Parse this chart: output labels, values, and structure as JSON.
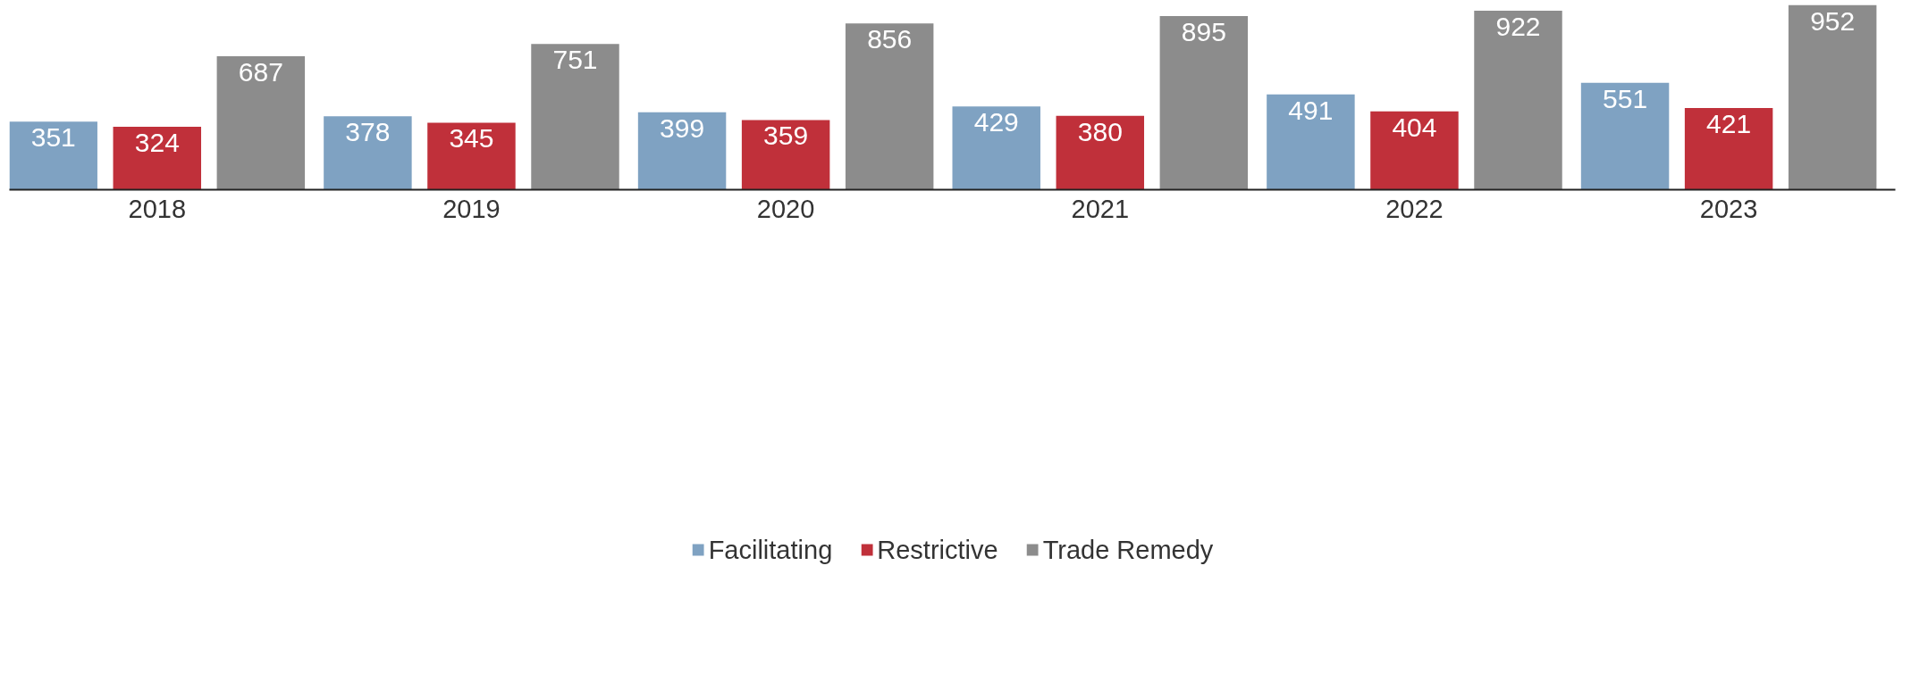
{
  "chart_data": {
    "type": "bar",
    "categories": [
      "2018",
      "2019",
      "2020",
      "2021",
      "2022",
      "2023"
    ],
    "series": [
      {
        "name": "Facilitating",
        "color": "#7fa2c2",
        "values": [
          351,
          378,
          399,
          429,
          491,
          551
        ]
      },
      {
        "name": "Restrictive",
        "color": "#c0303a",
        "values": [
          324,
          345,
          359,
          380,
          404,
          421
        ]
      },
      {
        "name": "Trade Remedy",
        "color": "#8c8c8c",
        "values": [
          687,
          751,
          856,
          895,
          922,
          952
        ]
      }
    ],
    "data_labels": true,
    "grid": false,
    "legend": "bottom"
  }
}
